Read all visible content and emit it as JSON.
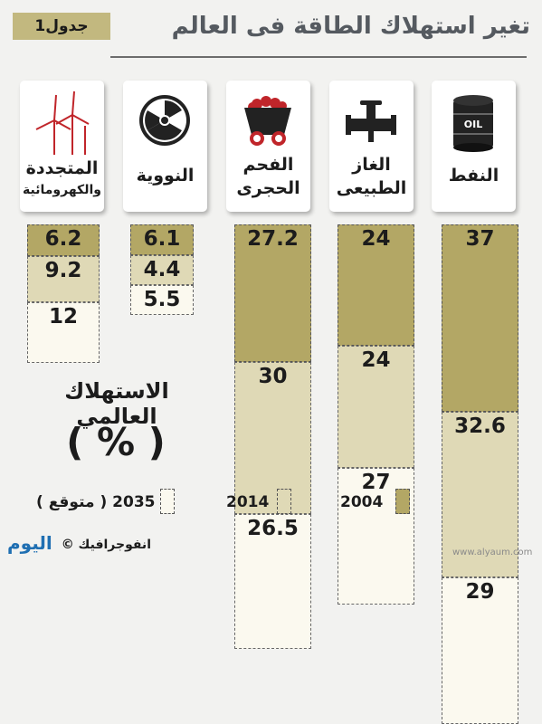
{
  "header": {
    "table_label": "جدول1",
    "title": "تغير استهلاك الطاقة فى العالم"
  },
  "chart_data": {
    "type": "table",
    "title": "تغير استهلاك الطاقة فى العالم",
    "subtitle": "الاستهلاك العالمي",
    "unit_text": "( % )",
    "years": [
      "2004",
      "2014",
      "2035"
    ],
    "categories": [
      {
        "name_lines": [
          "النفط"
        ],
        "icon": "oil-barrel-icon",
        "values": {
          "2004": 37,
          "2014": 32.6,
          "2035": 29
        }
      },
      {
        "name_lines": [
          "الغاز",
          "الطبيعى"
        ],
        "icon": "gas-pipe-icon",
        "values": {
          "2004": 24,
          "2014": 24,
          "2035": 27
        }
      },
      {
        "name_lines": [
          "الفحم",
          "الحجرى"
        ],
        "icon": "coal-cart-icon",
        "values": {
          "2004": 27.2,
          "2014": 30,
          "2035": 26.5
        }
      },
      {
        "name_lines": [
          "النووية"
        ],
        "icon": "nuclear-icon",
        "values": {
          "2004": 6.1,
          "2014": 4.4,
          "2035": 5.5
        }
      },
      {
        "name_lines": [
          "المتجددة",
          "والكهرومائية"
        ],
        "icon": "wind-turbine-icon",
        "values": {
          "2004": 6.2,
          "2014": 9.2,
          "2035": 12
        }
      }
    ],
    "value_labels": [
      [
        "37",
        "32.6",
        "29"
      ],
      [
        "24",
        "24",
        "27"
      ],
      [
        "27.2",
        "30",
        "26.5"
      ],
      [
        "6.1",
        "4.4",
        "5.5"
      ],
      [
        "6.2",
        "9.2",
        "12"
      ]
    ],
    "legend": [
      {
        "label": "2004",
        "color": "#b3a765"
      },
      {
        "label": "2014",
        "color": "#dfd9b6"
      },
      {
        "label": "2035 ( متوقع )",
        "color": "#fbf9ef"
      }
    ]
  },
  "footer": {
    "credit": "انفوجرافيك ©",
    "brand": "اليوم",
    "watermark": "www.alyaum.com"
  }
}
